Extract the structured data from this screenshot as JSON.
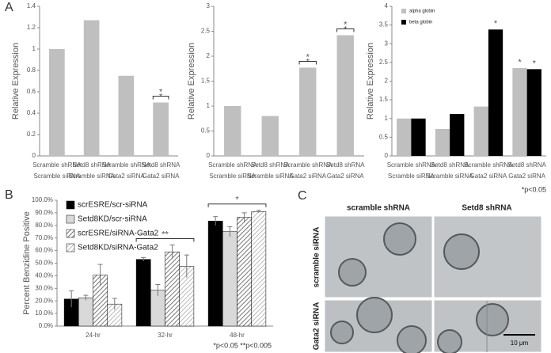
{
  "panel_labels": [
    "A",
    "B",
    "C"
  ],
  "chart_data": [
    {
      "type": "bar",
      "y_label": "Relative Expression",
      "ylim": [
        0,
        1.4
      ],
      "yticks": [
        0,
        0.2,
        0.4,
        0.6,
        0.8,
        1,
        1.2,
        1.4
      ],
      "grid": false,
      "categories": [
        [
          "Scramble shRNA",
          "Scramble siRNA"
        ],
        [
          "Setd8  shRNA",
          "Scramble siRNA"
        ],
        [
          "Scramble shRNA",
          "Gata2 siRNA"
        ],
        [
          "Setd8  shRNA",
          "Gata2 siRNA"
        ]
      ],
      "values": [
        1.0,
        1.27,
        0.75,
        0.5
      ],
      "significance": [
        null,
        null,
        null,
        "*"
      ],
      "color": "#bfbfbf"
    },
    {
      "type": "bar",
      "y_label": "Relative Expression",
      "ylim": [
        0,
        3
      ],
      "yticks": [
        0,
        0.5,
        1,
        1.5,
        2,
        2.5,
        3
      ],
      "grid": false,
      "categories": [
        [
          "Scramble shRNA",
          "Scramble siRNA"
        ],
        [
          "Setd8  shRNA",
          "Scramble siRNA"
        ],
        [
          "Scramble shRNA",
          "Gata2 siRNA"
        ],
        [
          "Setd8  shRNA",
          "Gata2 siRNA"
        ]
      ],
      "values": [
        1.0,
        0.8,
        1.77,
        2.42
      ],
      "significance": [
        null,
        null,
        "*",
        "*"
      ],
      "color": "#bfbfbf"
    },
    {
      "type": "bar",
      "y_label": "Relative Expression",
      "ylim": [
        0,
        4
      ],
      "yticks": [
        0,
        0.5,
        1,
        1.5,
        2,
        2.5,
        3,
        3.5,
        4
      ],
      "grid": false,
      "legend": "top-left",
      "categories": [
        [
          "Scramble shRNA",
          "Scramble siRNA"
        ],
        [
          "Setd8  shRNA",
          "Scramble siRNA"
        ],
        [
          "Scramble shRNA",
          "Gata2 siRNA"
        ],
        [
          "Setd8  shRNA",
          "Gata2 siRNA"
        ]
      ],
      "series": [
        {
          "name": "alpha globin",
          "color": "#bfbfbf",
          "values": [
            1.0,
            0.72,
            1.32,
            2.35
          ],
          "significance": [
            null,
            null,
            null,
            "*"
          ]
        },
        {
          "name": "beta globin",
          "color": "#000000",
          "values": [
            1.0,
            1.12,
            3.38,
            2.32
          ],
          "significance": [
            null,
            null,
            "*",
            "*"
          ]
        }
      ],
      "note": "*p<0.05"
    },
    {
      "type": "bar",
      "y_label": "Percent Benzidine Positive",
      "ylim": [
        0,
        100
      ],
      "yticks": [
        {
          "value": 0,
          "label": "0.0%"
        },
        {
          "value": 10,
          "label": "10.0%"
        },
        {
          "value": 20,
          "label": "20.0%"
        },
        {
          "value": 30,
          "label": "30.0%"
        },
        {
          "value": 40,
          "label": "40.0%"
        },
        {
          "value": 50,
          "label": "50.0%"
        },
        {
          "value": 60,
          "label": "60.0%"
        },
        {
          "value": 70,
          "label": "70.0%"
        },
        {
          "value": 80,
          "label": "80.0%"
        },
        {
          "value": 90,
          "label": "90.0%"
        },
        {
          "value": 100,
          "label": "100.0%"
        }
      ],
      "grid": false,
      "legend": "top-left",
      "categories": [
        "24-hr",
        "32-hr",
        "48-hr"
      ],
      "significance": [
        null,
        "**",
        "*"
      ],
      "series": [
        {
          "name": "scrESRE/scr-siRNA",
          "color": "#000000",
          "hatch": false,
          "values": [
            21.5,
            53,
            83.5
          ],
          "errors": [
            6.5,
            1.5,
            3.5
          ]
        },
        {
          "name": "Setd8KD/scr-siRNA",
          "color": "#d9d9d9",
          "hatch": false,
          "values": [
            22.5,
            28.5,
            75
          ],
          "errors": [
            2,
            4.5,
            4
          ]
        },
        {
          "name": "scrESRE/siRNA-Gata2",
          "color": "#555555",
          "hatch": true,
          "values": [
            40.5,
            59,
            86.5
          ],
          "errors": [
            8.5,
            5.5,
            3.5
          ]
        },
        {
          "name": "Setd8KD/siRNA-Gata2",
          "color": "#aaaaaa",
          "hatch": true,
          "values": [
            17.5,
            47.5,
            91
          ],
          "errors": [
            4.5,
            9,
            1
          ]
        }
      ],
      "note": "*p<0.05 **p<0.005"
    }
  ],
  "micrograph": {
    "column_labels": [
      "scramble shRNA",
      "Setd8 shRNA"
    ],
    "row_labels": [
      "scramble siRNA",
      "Gata2 siRNA"
    ],
    "scale_bar": "10 μm"
  }
}
